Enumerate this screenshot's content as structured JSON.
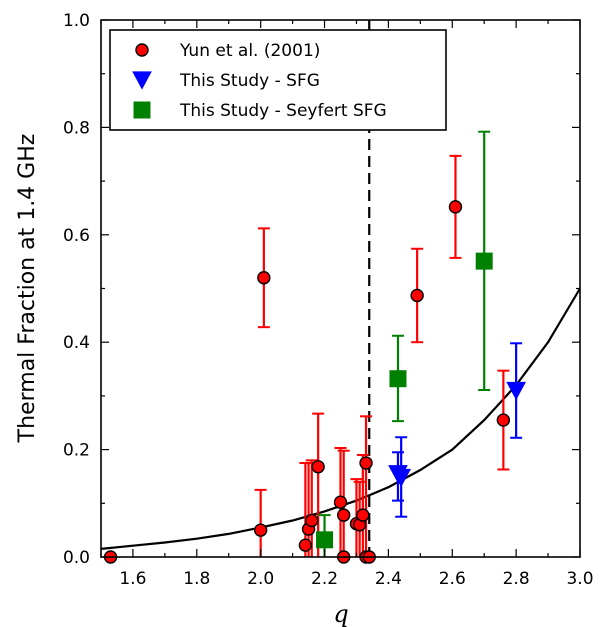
{
  "chart_data": {
    "type": "scatter",
    "title": "",
    "xlabel": "q",
    "ylabel": "Thermal Fraction at 1.4 GHz",
    "xlim": [
      1.5,
      3.0
    ],
    "ylim": [
      0.0,
      1.0
    ],
    "xticks": [
      "1.6",
      "1.8",
      "2.0",
      "2.2",
      "2.4",
      "2.6",
      "2.8",
      "3.0"
    ],
    "yticks": [
      "0.0",
      "0.2",
      "0.4",
      "0.6",
      "0.8",
      "1.0"
    ],
    "legend": {
      "placement": "top-left"
    },
    "vline": {
      "x": 2.34,
      "style": "dashed"
    },
    "model_curve": {
      "x": [
        1.5,
        1.6,
        1.7,
        1.8,
        1.9,
        2.0,
        2.1,
        2.2,
        2.3,
        2.4,
        2.5,
        2.6,
        2.7,
        2.8,
        2.9,
        3.0
      ],
      "y": [
        0.015,
        0.021,
        0.027,
        0.034,
        0.043,
        0.055,
        0.068,
        0.085,
        0.105,
        0.13,
        0.162,
        0.2,
        0.255,
        0.32,
        0.4,
        0.5
      ]
    },
    "series": [
      {
        "name": "Yun et al. (2001)",
        "marker": "circle",
        "color": "#ff0000",
        "errcolor": "#ff0000",
        "points": [
          {
            "x": 1.53,
            "y": 0.0,
            "lo": 0.0,
            "hi": 0.0
          },
          {
            "x": 2.0,
            "y": 0.05,
            "lo": 0.0,
            "hi": 0.125
          },
          {
            "x": 2.01,
            "y": 0.52,
            "lo": 0.428,
            "hi": 0.612
          },
          {
            "x": 2.14,
            "y": 0.022,
            "lo": 0.0,
            "hi": 0.175
          },
          {
            "x": 2.15,
            "y": 0.052,
            "lo": 0.0,
            "hi": 0.175
          },
          {
            "x": 2.16,
            "y": 0.068,
            "lo": 0.0,
            "hi": 0.18
          },
          {
            "x": 2.18,
            "y": 0.168,
            "lo": 0.0,
            "hi": 0.267
          },
          {
            "x": 2.25,
            "y": 0.102,
            "lo": 0.0,
            "hi": 0.203
          },
          {
            "x": 2.26,
            "y": 0.078,
            "lo": 0.0,
            "hi": 0.198
          },
          {
            "x": 2.26,
            "y": 0.0,
            "lo": 0.0,
            "hi": 0.0
          },
          {
            "x": 2.3,
            "y": 0.062,
            "lo": 0.0,
            "hi": 0.145
          },
          {
            "x": 2.31,
            "y": 0.06,
            "lo": 0.0,
            "hi": 0.14
          },
          {
            "x": 2.32,
            "y": 0.078,
            "lo": 0.0,
            "hi": 0.19
          },
          {
            "x": 2.33,
            "y": 0.175,
            "lo": 0.0,
            "hi": 0.262
          },
          {
            "x": 2.33,
            "y": 0.0,
            "lo": 0.0,
            "hi": 0.0
          },
          {
            "x": 2.34,
            "y": 0.0,
            "lo": 0.0,
            "hi": 0.0
          },
          {
            "x": 2.49,
            "y": 0.487,
            "lo": 0.4,
            "hi": 0.574
          },
          {
            "x": 2.61,
            "y": 0.652,
            "lo": 0.557,
            "hi": 0.747
          },
          {
            "x": 2.76,
            "y": 0.255,
            "lo": 0.163,
            "hi": 0.347
          }
        ]
      },
      {
        "name": "This Study - SFG",
        "marker": "triangle-down",
        "color": "#0000ff",
        "errcolor": "#0000ff",
        "points": [
          {
            "x": 2.43,
            "y": 0.155,
            "lo": 0.105,
            "hi": 0.195
          },
          {
            "x": 2.44,
            "y": 0.148,
            "lo": 0.075,
            "hi": 0.223
          },
          {
            "x": 2.8,
            "y": 0.31,
            "lo": 0.222,
            "hi": 0.398
          }
        ]
      },
      {
        "name": "This Study - Seyfert SFG",
        "marker": "square",
        "color": "#008000",
        "errcolor": "#008000",
        "points": [
          {
            "x": 2.2,
            "y": 0.032,
            "lo": 0.0,
            "hi": 0.078
          },
          {
            "x": 2.43,
            "y": 0.332,
            "lo": 0.253,
            "hi": 0.412
          },
          {
            "x": 2.7,
            "y": 0.551,
            "lo": 0.311,
            "hi": 0.792
          }
        ]
      }
    ]
  }
}
